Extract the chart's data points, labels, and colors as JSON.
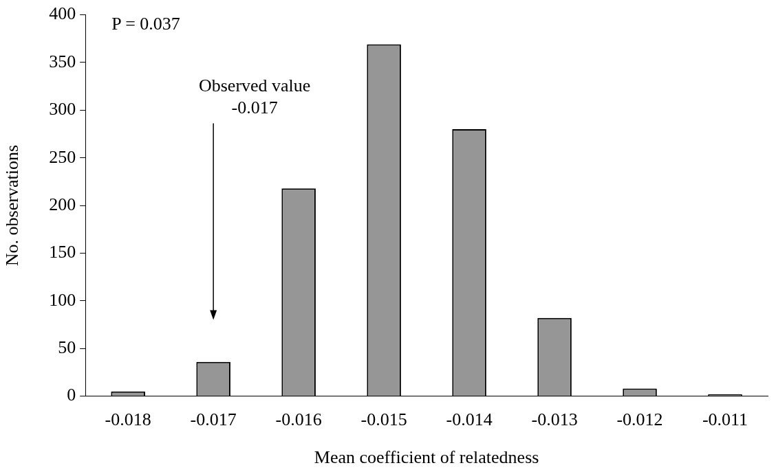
{
  "chart_data": {
    "type": "bar",
    "xlabel": "Mean coefficient of relatedness",
    "ylabel": "No. observations",
    "categories": [
      "-0.018",
      "-0.017",
      "-0.016",
      "-0.015",
      "-0.014",
      "-0.013",
      "-0.012",
      "-0.011"
    ],
    "values": [
      5,
      36,
      218,
      369,
      280,
      82,
      8,
      2
    ],
    "color": "#969696",
    "ylim": [
      0,
      400
    ],
    "yticks": [
      0,
      50,
      100,
      150,
      200,
      250,
      300,
      350,
      400
    ],
    "grid": false,
    "legend": false,
    "annotations": [
      "P = 0.037",
      "Observed value\n-0.017"
    ]
  }
}
